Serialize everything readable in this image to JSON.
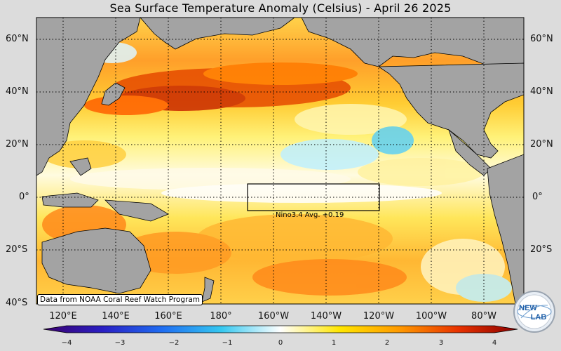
{
  "title": "Sea Surface Temperature Anomaly (Celsius) - April 26 2025",
  "lat_labels_left": [
    "60°N",
    "40°N",
    "20°N",
    "0°",
    "20°S",
    "40°S"
  ],
  "lat_labels_right": [
    "60°N",
    "40°N",
    "20°N",
    "0°",
    "20°S"
  ],
  "lon_labels": [
    "120°E",
    "140°E",
    "160°E",
    "180°",
    "160°W",
    "140°W",
    "120°W",
    "100°W",
    "80°W"
  ],
  "colorbar": {
    "ticks": [
      "−4",
      "−3",
      "−2",
      "−1",
      "0",
      "1",
      "2",
      "3",
      "4"
    ],
    "colors": [
      "#3b006d",
      "#2a1fc4",
      "#1f6df2",
      "#35c8f0",
      "#ffffff",
      "#ffe600",
      "#ff9a00",
      "#e83200",
      "#8a0000"
    ]
  },
  "nino_box": {
    "label": "Nino3.4 Avg. +0.19"
  },
  "credit": "Data from NOAA Coral Reef Watch Program",
  "logo": {
    "top_text": "NEW",
    "bottom_text": "LAB"
  }
}
